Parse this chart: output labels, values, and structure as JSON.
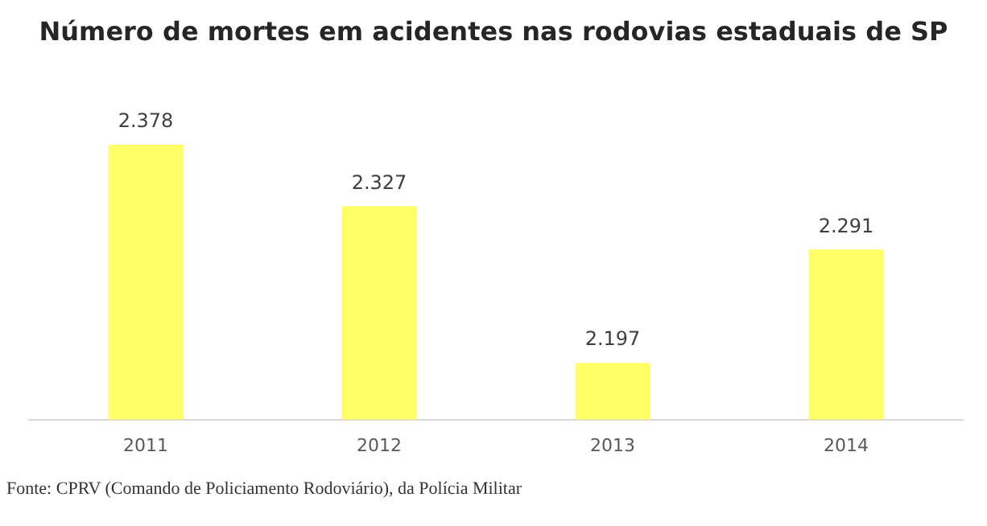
{
  "chart_data": {
    "type": "bar",
    "title": "Número de mortes em acidentes nas rodovias estaduais de SP",
    "categories": [
      "2011",
      "2012",
      "2013",
      "2014"
    ],
    "values": [
      2378,
      2327,
      2197,
      2291
    ],
    "value_labels": [
      "2.378",
      "2.327",
      "2.197",
      "2.291"
    ],
    "color": "#ffff66",
    "tick_labels": "x",
    "grid": false,
    "legend": false,
    "annotations": [
      "Fonte: CPRV (Comando de Policiamento Rodoviário), da Polícia Militar"
    ]
  }
}
